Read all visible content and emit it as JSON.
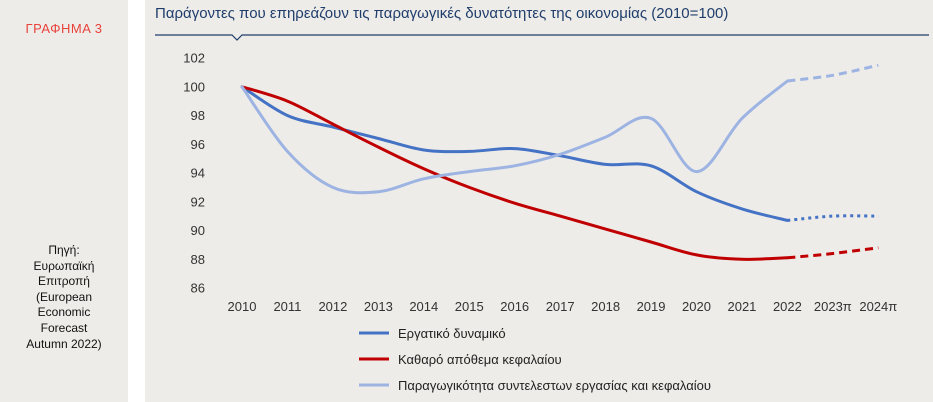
{
  "figure_label": "ΓΡΑΦΗΜΑ 3",
  "source_lines": [
    "Πηγή:",
    "Ευρωπαϊκή",
    "Επιτροπή",
    "(European",
    "Economic",
    "Forecast",
    "Autumn 2022)"
  ],
  "colors": {
    "series_labour": "#4472c4",
    "series_capital": "#c00000",
    "series_tfp": "#9db4e3",
    "title": "#1e3d6b",
    "figure_label": "#e8423b",
    "background": "#eeece9"
  },
  "chart_data": {
    "type": "line",
    "title": "Παράγοντες που επηρεάζουν τις παραγωγικές δυνατότητες της οικονομίας (2010=100)",
    "xlabel": "",
    "ylabel": "",
    "categories": [
      "2010",
      "2011",
      "2012",
      "2013",
      "2014",
      "2015",
      "2016",
      "2017",
      "2018",
      "2019",
      "2020",
      "2021",
      "2022",
      "2023π",
      "2024π"
    ],
    "ylim": [
      86,
      102
    ],
    "yticks": [
      86,
      88,
      90,
      92,
      94,
      96,
      98,
      100,
      102
    ],
    "grid": false,
    "legend_position": "bottom",
    "forecast_from": "2022",
    "series": [
      {
        "name": "Εργατικό δυναμικό",
        "color_key": "series_labour",
        "forecast_style": "dotted",
        "values": [
          100,
          98.0,
          97.2,
          96.4,
          95.6,
          95.5,
          95.7,
          95.2,
          94.6,
          94.5,
          92.7,
          91.5,
          90.7,
          91.0,
          91.0
        ]
      },
      {
        "name": "Καθαρό απόθεμα κεφαλαίου",
        "color_key": "series_capital",
        "forecast_style": "dashed",
        "values": [
          100,
          99.0,
          97.4,
          95.8,
          94.3,
          93.0,
          91.9,
          91.0,
          90.1,
          89.2,
          88.3,
          88.0,
          88.1,
          88.4,
          88.8
        ]
      },
      {
        "name": "Παραγωγικότητα συντελεστων εργασίας και κεφαλαίου",
        "color_key": "series_tfp",
        "forecast_style": "dashed",
        "values": [
          100,
          95.5,
          93.0,
          92.7,
          93.6,
          94.1,
          94.5,
          95.3,
          96.5,
          97.8,
          94.1,
          97.8,
          100.4,
          100.8,
          101.5
        ]
      }
    ]
  }
}
